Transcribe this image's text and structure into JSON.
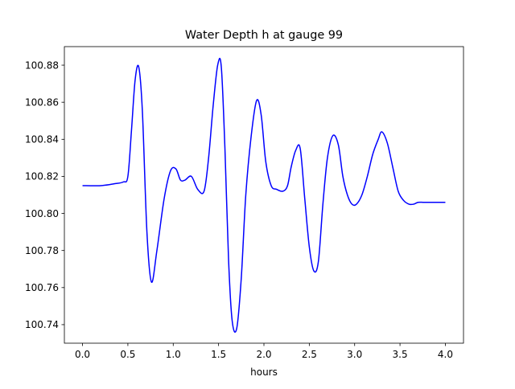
{
  "chart_data": {
    "type": "line",
    "title": "Water Depth h at gauge 99",
    "xlabel": "hours",
    "ylabel": "",
    "xlim": [
      -0.2,
      4.2
    ],
    "ylim": [
      100.73,
      100.89
    ],
    "xticks": [
      0.0,
      0.5,
      1.0,
      1.5,
      2.0,
      2.5,
      3.0,
      3.5,
      4.0
    ],
    "xtick_labels": [
      "0.0",
      "0.5",
      "1.0",
      "1.5",
      "2.0",
      "2.5",
      "3.0",
      "3.5",
      "4.0"
    ],
    "yticks": [
      100.74,
      100.76,
      100.78,
      100.8,
      100.82,
      100.84,
      100.86,
      100.88
    ],
    "ytick_labels": [
      "100.74",
      "100.76",
      "100.78",
      "100.80",
      "100.82",
      "100.84",
      "100.86",
      "100.88"
    ],
    "grid": false,
    "legend": "none",
    "series": [
      {
        "color": "#0000ff",
        "x": [
          0.0,
          0.2,
          0.35,
          0.45,
          0.5,
          0.54,
          0.58,
          0.62,
          0.66,
          0.71,
          0.76,
          0.82,
          0.9,
          0.97,
          1.03,
          1.08,
          1.13,
          1.2,
          1.27,
          1.34,
          1.39,
          1.44,
          1.49,
          1.53,
          1.57,
          1.61,
          1.65,
          1.7,
          1.75,
          1.8,
          1.86,
          1.92,
          1.97,
          2.02,
          2.08,
          2.14,
          2.21,
          2.26,
          2.3,
          2.35,
          2.4,
          2.45,
          2.5,
          2.55,
          2.6,
          2.65,
          2.7,
          2.76,
          2.82,
          2.87,
          2.92,
          2.97,
          3.02,
          3.08,
          3.14,
          3.2,
          3.26,
          3.3,
          3.36,
          3.42,
          3.48,
          3.54,
          3.6,
          3.65,
          3.7,
          3.76,
          3.82,
          3.88,
          3.94,
          4.0
        ],
        "y": [
          100.815,
          100.815,
          100.816,
          100.817,
          100.82,
          100.845,
          100.872,
          100.879,
          100.855,
          100.79,
          100.763,
          100.78,
          100.808,
          100.823,
          100.824,
          100.818,
          100.818,
          100.82,
          100.813,
          100.812,
          100.83,
          100.858,
          100.88,
          100.879,
          100.835,
          100.775,
          100.742,
          100.738,
          100.765,
          100.81,
          100.842,
          100.861,
          100.853,
          100.828,
          100.815,
          100.813,
          100.812,
          100.815,
          100.825,
          100.834,
          100.835,
          100.808,
          100.782,
          100.769,
          100.774,
          100.805,
          100.83,
          100.842,
          100.837,
          100.82,
          100.81,
          100.805,
          100.805,
          100.81,
          100.82,
          100.832,
          100.84,
          100.844,
          100.838,
          100.825,
          100.812,
          100.807,
          100.805,
          100.805,
          100.806,
          100.806,
          100.806,
          100.806,
          100.806,
          100.806
        ]
      }
    ]
  }
}
